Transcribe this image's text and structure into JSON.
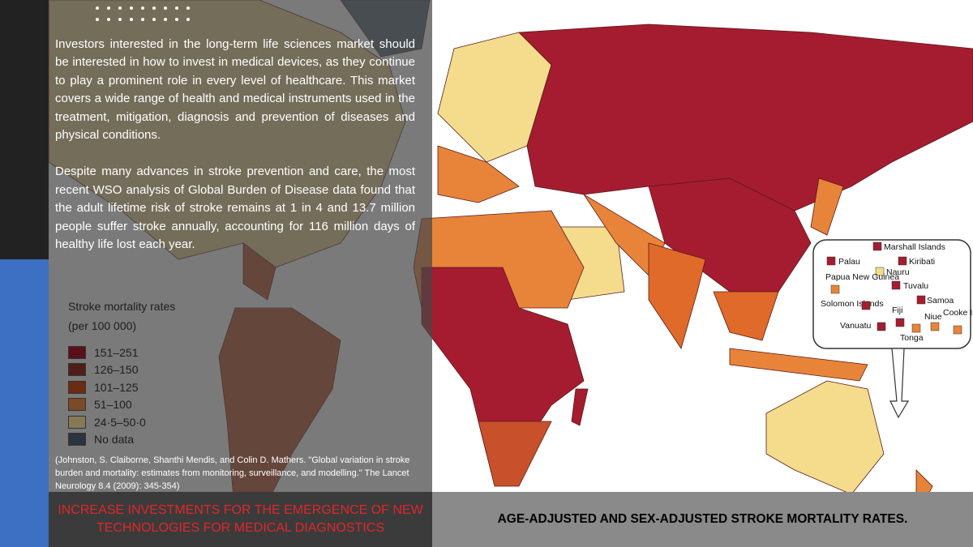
{
  "paragraphs": [
    "Investors interested in the long-term life sciences market should be interested in how to invest in medical devices, as they continue to play a prominent role in every level of healthcare. This market covers a wide range of health and medical instruments used in the treatment, mitigation, diagnosis and prevention of diseases and physical conditions.",
    "Despite many advances in stroke prevention and care, the most recent WSO analysis of Global Burden of Disease data found that the adult lifetime risk of stroke remains at 1 in 4 and 13.7 million people suffer stroke annually, accounting for 116 million days of healthy life lost each year."
  ],
  "legend": {
    "title": "Stroke mortality rates",
    "subtitle": "(per 100 000)",
    "items": [
      "151–251",
      "126–150",
      "101–125",
      "51–100",
      "24·5–50·0",
      "No data"
    ]
  },
  "citation": "(Johnston, S. Claiborne, Shanthi Mendis, and Colin D. Mathers. \"Global variation in stroke burden and mortality: estimates from monitoring, surveillance, and modelling.\" The Lancet Neurology 8.4 (2009): 345-354)",
  "banner": "INCREASE INVESTMENTS FOR THE EMERGENCE OF NEW TECHNOLOGIES FOR MEDICAL DIAGNOSTICS",
  "caption": "AGE-ADJUSTED AND SEX-ADJUSTED STROKE MORTALITY RATES.",
  "inset": {
    "labels": [
      "Marshall Islands",
      "Palau",
      "Kiribati",
      "Nauru",
      "Papua New Guinea",
      "Tuvalu",
      "Solomon Islands",
      "Samoa",
      "Fiji",
      "Niue",
      "Cooke Islands",
      "Vanuatu",
      "Tonga"
    ]
  }
}
